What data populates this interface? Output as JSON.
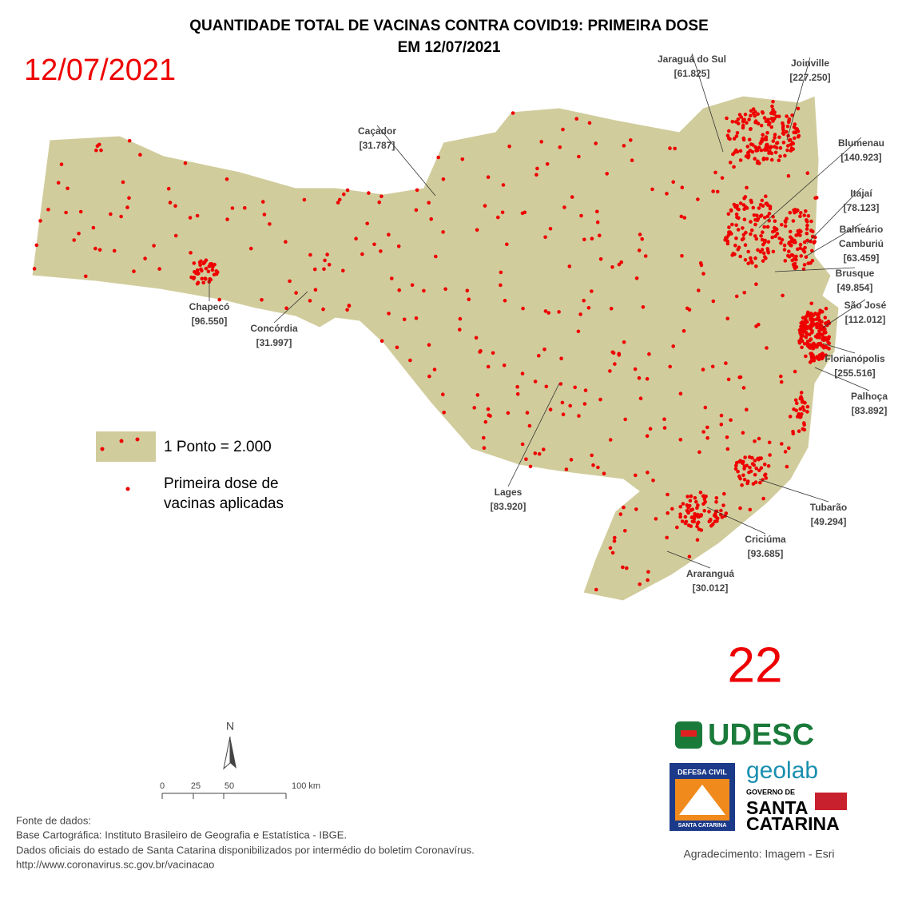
{
  "title": [
    "QUANTIDADE TOTAL DE VACINAS CONTRA COVID19: PRIMEIRA DOSE",
    "EM 12/07/2021"
  ],
  "date": "12/07/2021",
  "week": "22",
  "cities": [
    {
      "name": "Jaraguá do Sul",
      "value": "[61.825]"
    },
    {
      "name": "Joinville",
      "value": "[227.250]"
    },
    {
      "name": "Caçador",
      "value": "[31.787]"
    },
    {
      "name": "Blumenau",
      "value": "[140.923]"
    },
    {
      "name": "Itajaí",
      "value": "[78.123]"
    },
    {
      "name": [
        "Balneário",
        "Camburiú"
      ],
      "value": "[63.459]"
    },
    {
      "name": "Brusque",
      "value": "[49.854]"
    },
    {
      "name": "São José",
      "value": "[112.012]"
    },
    {
      "name": "Florianópolis",
      "value": "[255.516]"
    },
    {
      "name": "Palhoça",
      "value": "[83.892]"
    },
    {
      "name": "Chapecó",
      "value": "[96.550]"
    },
    {
      "name": "Concórdia",
      "value": "[31.997]"
    },
    {
      "name": "Lages",
      "value": "[83.920]"
    },
    {
      "name": "Tubarão",
      "value": "[49.294]"
    },
    {
      "name": "Criciúma",
      "value": "[93.685]"
    },
    {
      "name": "Araranguá",
      "value": "[30.012]"
    }
  ],
  "legend": {
    "scale": "1 Ponto = 2.000",
    "item": [
      "Primeira dose de",
      "vacinas aplicadas"
    ]
  },
  "north": "N",
  "scale_bar": [
    "0",
    "25",
    "50",
    "100 km"
  ],
  "sources": [
    "Fonte de dados:",
    "Base Cartográfica: Instituto Brasileiro de Geografia e Estatística - IBGE.",
    "Dados oficiais do estado de Santa Catarina disponibilizados por intermédio do boletim Coronavírus.",
    "http://www.coronavirus.sc.gov.br/vacinacao"
  ],
  "logos": {
    "udesc": "UDESC",
    "geolab": "geolab",
    "defesa": [
      "DEFESA CIVIL",
      "SANTA CATARINA"
    ],
    "governo": [
      "GOVERNO DE",
      "SANTA",
      "CATARINA"
    ]
  },
  "credit": "Agradecimento: Imagem - Esri"
}
